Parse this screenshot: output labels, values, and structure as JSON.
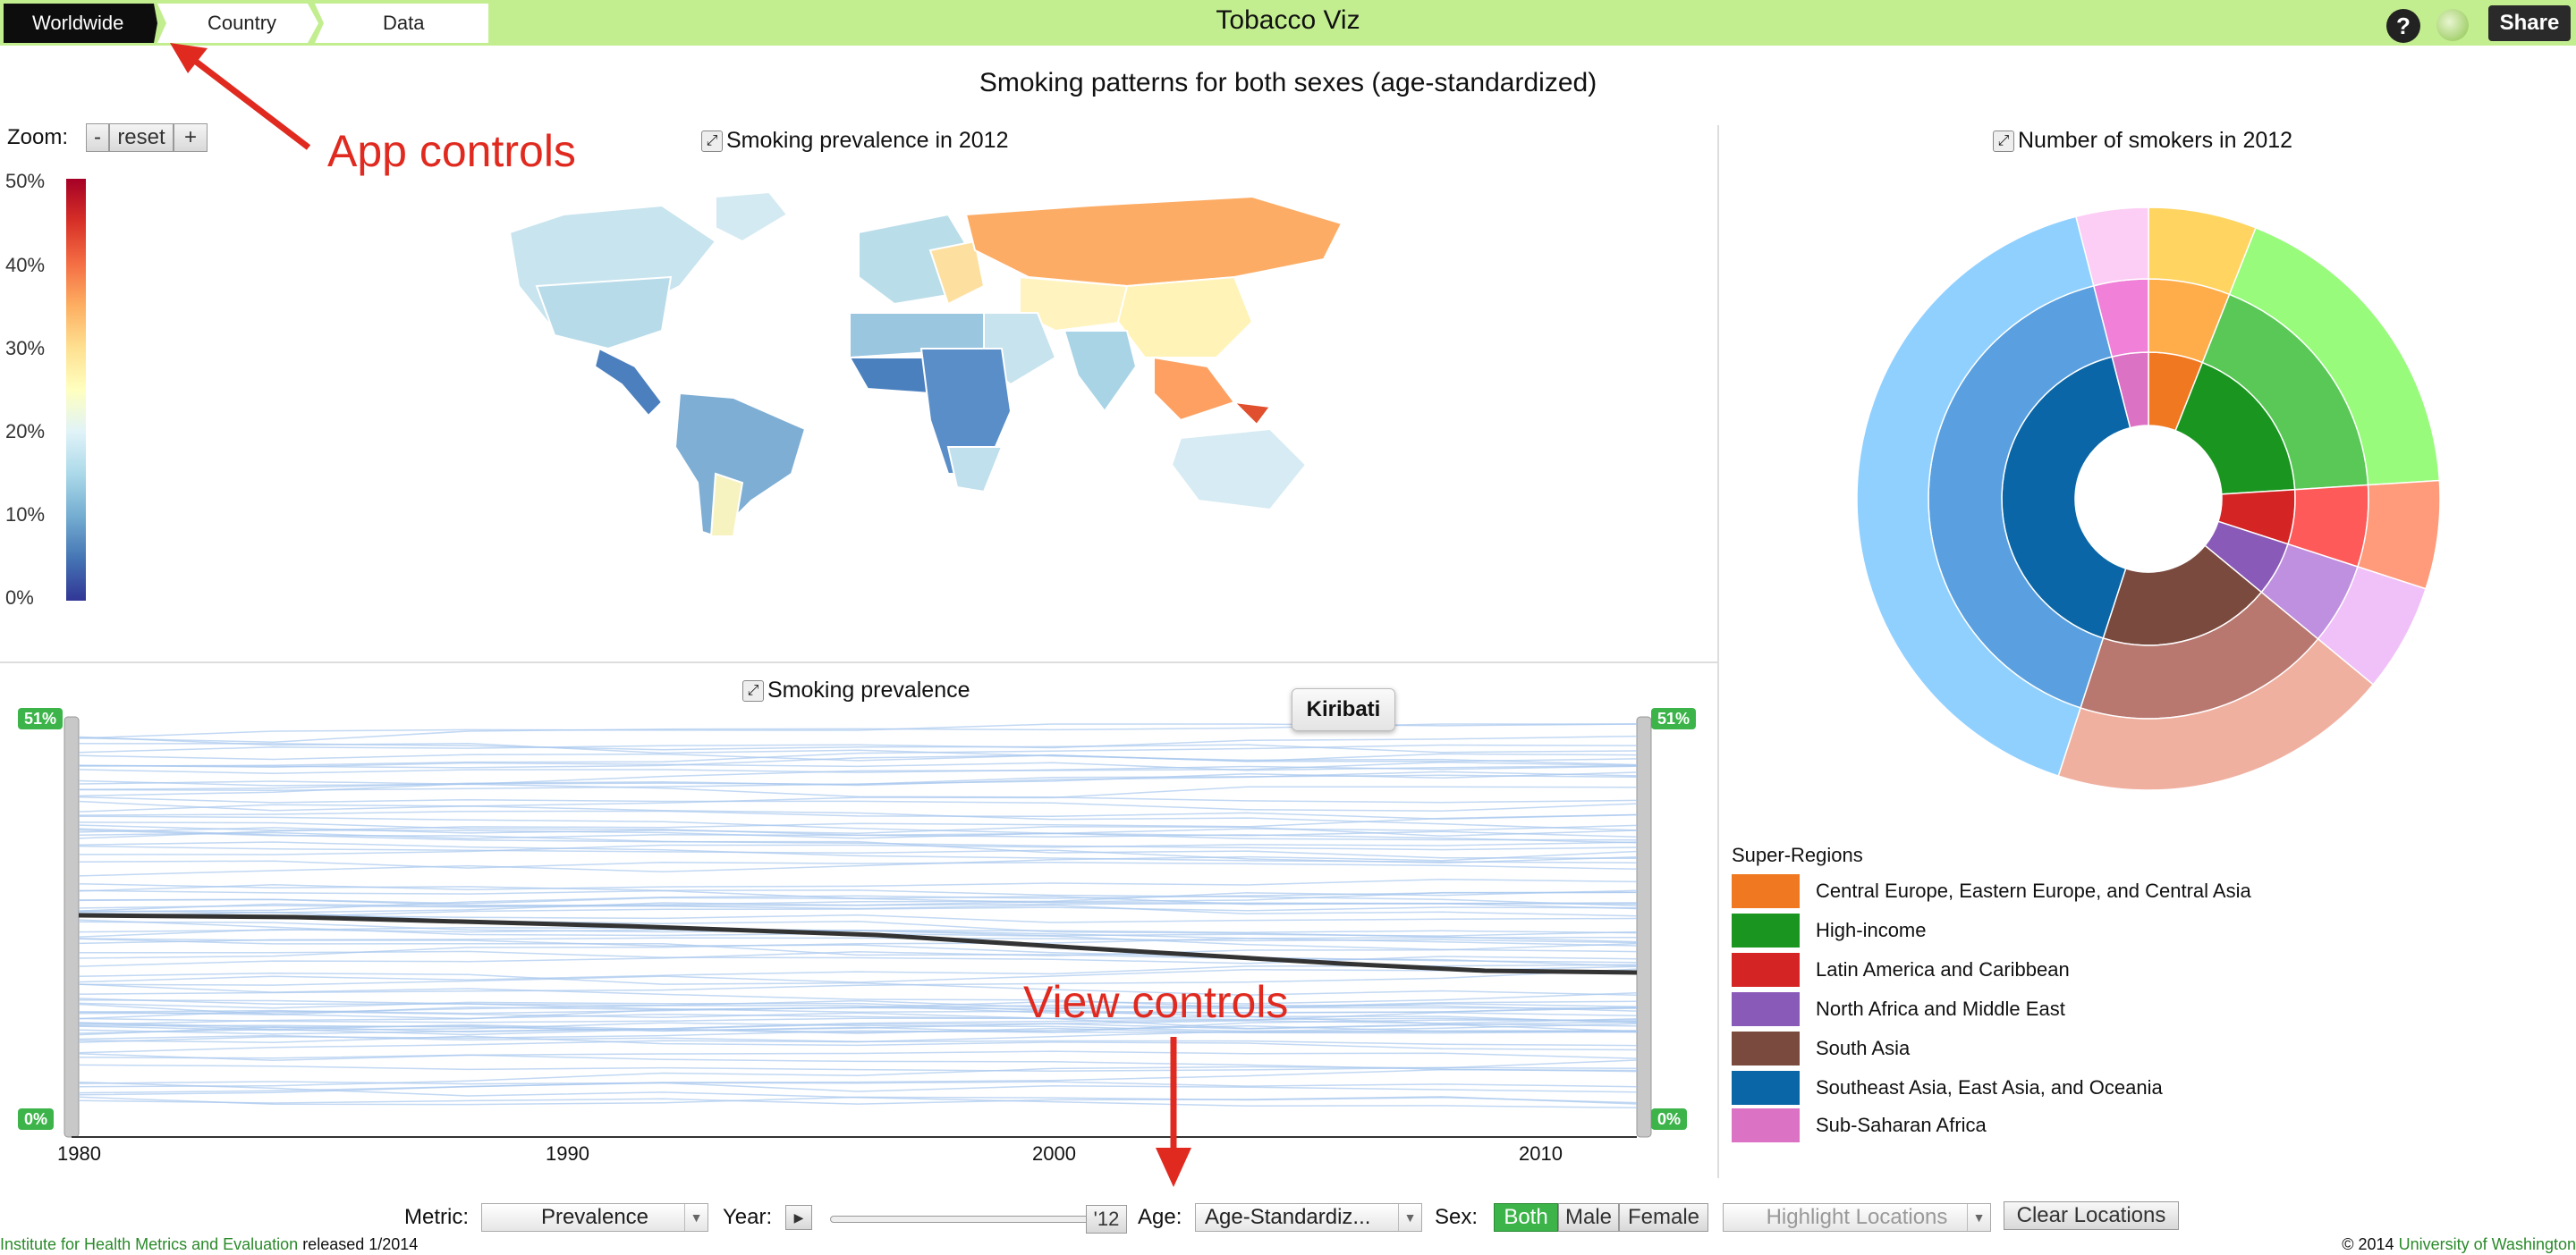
{
  "nav": {
    "breadcrumbs": [
      "Worldwide",
      "Country",
      "Data"
    ],
    "title": "Tobacco Viz",
    "help_label": "?",
    "share_label": "Share"
  },
  "page_title": "Smoking patterns for both sexes (age-standardized)",
  "zoom": {
    "label": "Zoom:",
    "minus": "-",
    "reset": "reset",
    "plus": "+"
  },
  "map_panel": {
    "title": "Smoking prevalence in 2012"
  },
  "color_legend": {
    "ticks": [
      "50%",
      "40%",
      "30%",
      "20%",
      "10%",
      "0%"
    ],
    "colors": [
      "#a50026",
      "#d73027",
      "#f46d43",
      "#fdae61",
      "#fee090",
      "#ffffbf",
      "#e0f3f8",
      "#abd9e9",
      "#74add1",
      "#4575b4",
      "#313695"
    ]
  },
  "sunburst_panel": {
    "title": "Number of smokers in 2012"
  },
  "trend_panel": {
    "title": "Smoking prevalence",
    "tooltip": "Kiribati",
    "max_badge": "51%",
    "min_badge": "0%",
    "x_ticks": [
      "1980",
      "1990",
      "2000",
      "2010"
    ]
  },
  "annotations": {
    "app_controls": "App controls",
    "view_controls": "View controls"
  },
  "super_regions": {
    "title": "Super-Regions",
    "items": [
      {
        "label": "Central Europe, Eastern Europe, and Central Asia",
        "color": "#f07820"
      },
      {
        "label": "High-income",
        "color": "#1a9620"
      },
      {
        "label": "Latin America and Caribbean",
        "color": "#d42424"
      },
      {
        "label": "North Africa and Middle East",
        "color": "#8a5ab8"
      },
      {
        "label": "South Asia",
        "color": "#7a4a3e"
      },
      {
        "label": "Southeast Asia, East Asia, and Oceania",
        "color": "#0a66a6"
      },
      {
        "label": "Sub-Saharan Africa",
        "color": "#dc72c4"
      }
    ]
  },
  "controls": {
    "metric_label": "Metric:",
    "metric_value": "Prevalence",
    "year_label": "Year:",
    "year_value": "'12",
    "age_label": "Age:",
    "age_value": "Age-Standardiz...",
    "sex_label": "Sex:",
    "sex_options": [
      "Both",
      "Male",
      "Female"
    ],
    "highlight_placeholder": "Highlight Locations",
    "clear_label": "Clear Locations"
  },
  "footer": {
    "institute": "Institute for Health Metrics and Evaluation",
    "released": "released 1/2014",
    "copyright": "© 2014",
    "university": "University of Washington"
  }
}
